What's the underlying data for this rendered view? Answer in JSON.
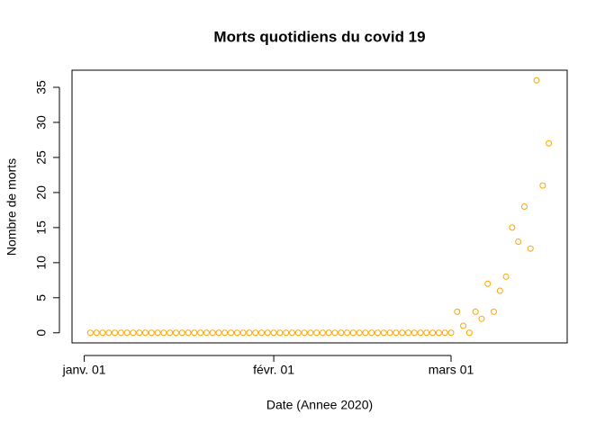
{
  "chart_data": {
    "type": "scatter",
    "title": "Morts quotidiens du covid 19",
    "x_label": "Date (Annee 2020)",
    "y_label": "Nombre de morts",
    "color": "#FFA500",
    "x": [
      "2020-01-02",
      "2020-01-03",
      "2020-01-04",
      "2020-01-05",
      "2020-01-06",
      "2020-01-07",
      "2020-01-08",
      "2020-01-09",
      "2020-01-10",
      "2020-01-11",
      "2020-01-12",
      "2020-01-13",
      "2020-01-14",
      "2020-01-15",
      "2020-01-16",
      "2020-01-17",
      "2020-01-18",
      "2020-01-19",
      "2020-01-20",
      "2020-01-21",
      "2020-01-22",
      "2020-01-23",
      "2020-01-24",
      "2020-01-25",
      "2020-01-26",
      "2020-01-27",
      "2020-01-28",
      "2020-01-29",
      "2020-01-30",
      "2020-01-31",
      "2020-02-01",
      "2020-02-02",
      "2020-02-03",
      "2020-02-04",
      "2020-02-05",
      "2020-02-06",
      "2020-02-07",
      "2020-02-08",
      "2020-02-09",
      "2020-02-10",
      "2020-02-11",
      "2020-02-12",
      "2020-02-13",
      "2020-02-14",
      "2020-02-15",
      "2020-02-16",
      "2020-02-17",
      "2020-02-18",
      "2020-02-19",
      "2020-02-20",
      "2020-02-21",
      "2020-02-22",
      "2020-02-23",
      "2020-02-24",
      "2020-02-25",
      "2020-02-26",
      "2020-02-27",
      "2020-02-28",
      "2020-02-29",
      "2020-03-01",
      "2020-03-02",
      "2020-03-03",
      "2020-03-04",
      "2020-03-05",
      "2020-03-06",
      "2020-03-07",
      "2020-03-08",
      "2020-03-09",
      "2020-03-10",
      "2020-03-11",
      "2020-03-12",
      "2020-03-13",
      "2020-03-14",
      "2020-03-15",
      "2020-03-16",
      "2020-03-17"
    ],
    "values": [
      0,
      0,
      0,
      0,
      0,
      0,
      0,
      0,
      0,
      0,
      0,
      0,
      0,
      0,
      0,
      0,
      0,
      0,
      0,
      0,
      0,
      0,
      0,
      0,
      0,
      0,
      0,
      0,
      0,
      0,
      0,
      0,
      0,
      0,
      0,
      0,
      0,
      0,
      0,
      0,
      0,
      0,
      0,
      0,
      0,
      0,
      0,
      0,
      0,
      0,
      0,
      0,
      0,
      0,
      0,
      0,
      0,
      0,
      0,
      0,
      3,
      1,
      0,
      3,
      2,
      7,
      3,
      6,
      8,
      15,
      13,
      18,
      12,
      36,
      21,
      27
    ],
    "xlim": [
      "2019-12-30",
      "2020-03-20"
    ],
    "xticks": [
      {
        "value": "2020-01-01",
        "label": "janv. 01"
      },
      {
        "value": "2020-02-01",
        "label": "févr. 01"
      },
      {
        "value": "2020-03-01",
        "label": "mars 01"
      }
    ],
    "ylim": [
      -1.44,
      37.44
    ],
    "yticks": [
      0,
      5,
      10,
      15,
      20,
      25,
      30,
      35
    ]
  }
}
